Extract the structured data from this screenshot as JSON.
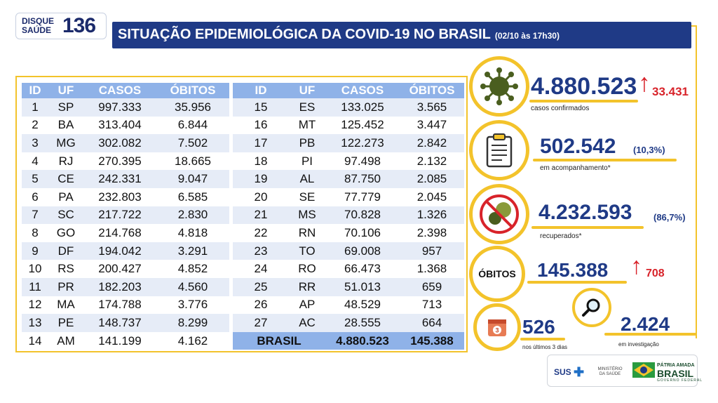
{
  "header": {
    "logo_line1": "DISQUE",
    "logo_line2": "SAÚDE",
    "logo_number": "136",
    "title": "SITUAÇÃO EPIDEMIOLÓGICA DA COVID-19 NO BRASIL",
    "timestamp": "(02/10 às 17h30)"
  },
  "table": {
    "columns": [
      "ID",
      "UF",
      "CASOS",
      "ÓBITOS"
    ],
    "left_rows": [
      [
        "1",
        "SP",
        "997.333",
        "35.956"
      ],
      [
        "2",
        "BA",
        "313.404",
        "6.844"
      ],
      [
        "3",
        "MG",
        "302.082",
        "7.502"
      ],
      [
        "4",
        "RJ",
        "270.395",
        "18.665"
      ],
      [
        "5",
        "CE",
        "242.331",
        "9.047"
      ],
      [
        "6",
        "PA",
        "232.803",
        "6.585"
      ],
      [
        "7",
        "SC",
        "217.722",
        "2.830"
      ],
      [
        "8",
        "GO",
        "214.768",
        "4.818"
      ],
      [
        "9",
        "DF",
        "194.042",
        "3.291"
      ],
      [
        "10",
        "RS",
        "200.427",
        "4.852"
      ],
      [
        "11",
        "PR",
        "182.203",
        "4.560"
      ],
      [
        "12",
        "MA",
        "174.788",
        "3.776"
      ],
      [
        "13",
        "PE",
        "148.737",
        "8.299"
      ],
      [
        "14",
        "AM",
        "141.199",
        "4.162"
      ]
    ],
    "right_rows": [
      [
        "15",
        "ES",
        "133.025",
        "3.565"
      ],
      [
        "16",
        "MT",
        "125.452",
        "3.447"
      ],
      [
        "17",
        "PB",
        "122.273",
        "2.842"
      ],
      [
        "18",
        "PI",
        "97.498",
        "2.132"
      ],
      [
        "19",
        "AL",
        "87.750",
        "2.085"
      ],
      [
        "20",
        "SE",
        "77.779",
        "2.045"
      ],
      [
        "21",
        "MS",
        "70.828",
        "1.326"
      ],
      [
        "22",
        "RN",
        "70.106",
        "2.398"
      ],
      [
        "23",
        "TO",
        "69.008",
        "957"
      ],
      [
        "24",
        "RO",
        "66.473",
        "1.368"
      ],
      [
        "25",
        "RR",
        "51.013",
        "659"
      ],
      [
        "26",
        "AP",
        "48.529",
        "713"
      ],
      [
        "27",
        "AC",
        "28.555",
        "664"
      ]
    ],
    "total": {
      "label": "BRASIL",
      "casos": "4.880.523",
      "obitos": "145.388"
    }
  },
  "stats": {
    "confirmed": {
      "value": "4.880.523",
      "delta": "33.431",
      "label": "casos confirmados",
      "icon": "virus-icon"
    },
    "monitoring": {
      "value": "502.542",
      "pct": "(10,3%)",
      "label": "em acompanhamento*",
      "icon": "clipboard-icon"
    },
    "recovered": {
      "value": "4.232.593",
      "pct": "(86,7%)",
      "label": "recuperados*",
      "icon": "no-virus-icon"
    },
    "deaths": {
      "circle_label": "ÓBITOS",
      "value": "145.388",
      "delta": "708"
    },
    "last3days": {
      "value": "526",
      "label": "nos últimos 3 dias",
      "calendar_num": "3",
      "icon": "calendar-icon"
    },
    "investigation": {
      "value": "2.424",
      "label": "em investigação",
      "icon": "magnifier-icon"
    }
  },
  "footer": {
    "sus": "SUS",
    "ministerio": "MINISTÉRIO DA SAÚDE",
    "patria": "PÁTRIA AMADA",
    "brasil": "BRASIL",
    "gov": "GOVERNO FEDERAL"
  },
  "colors": {
    "navy": "#1f3a86",
    "gold": "#f3c32b",
    "table_header": "#8fb2e8",
    "stripe": "#e6ecf7",
    "alert_red": "#d8232a",
    "virus_green": "#4a5e1f"
  }
}
